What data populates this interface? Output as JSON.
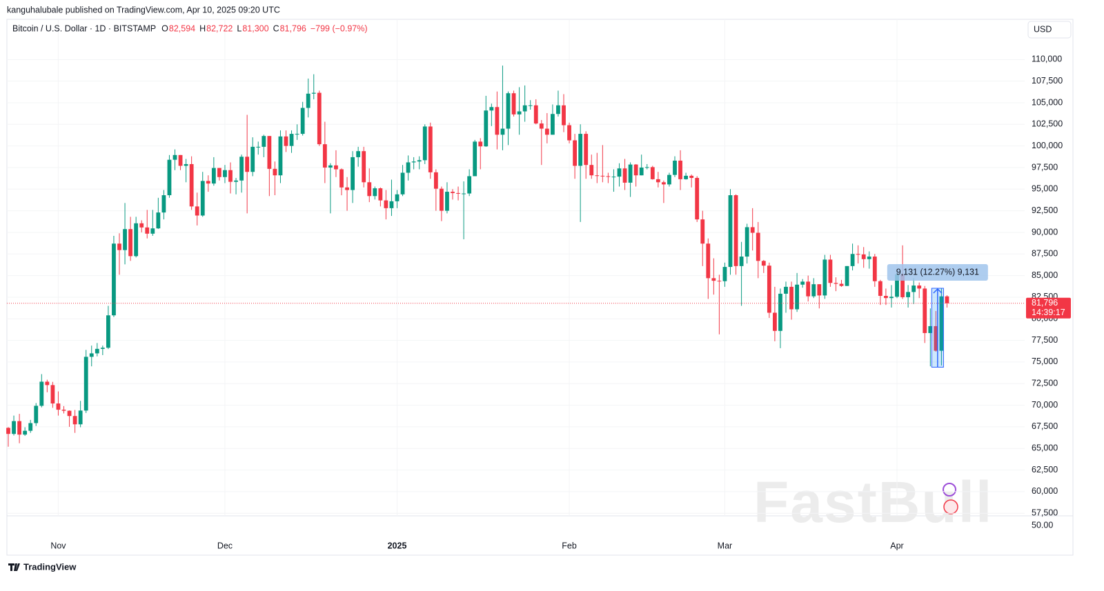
{
  "header": {
    "publisher": "kanguhalubale published on TradingView.com, Apr 10, 2025 09:20 UTC"
  },
  "chart_data": {
    "type": "candlestick",
    "title": "Bitcoin / U.S. Dollar · 1D · BITSTAMP",
    "legend": [
      {
        "key": "O",
        "value": "82,594"
      },
      {
        "key": "H",
        "value": "82,722"
      },
      {
        "key": "L",
        "value": "81,300"
      },
      {
        "key": "C",
        "value": "81,796"
      }
    ],
    "change": "−799 (−0.97%)",
    "currency": "USD",
    "categories": [
      null,
      null,
      null,
      null,
      null,
      null,
      null,
      null,
      null,
      "Nov",
      null,
      null,
      null,
      null,
      null,
      null,
      null,
      null,
      null,
      null,
      null,
      null,
      null,
      null,
      null,
      null,
      null,
      null,
      null,
      null,
      null,
      null,
      null,
      null,
      null,
      null,
      null,
      null,
      null,
      "Dec",
      null,
      null,
      null,
      null,
      null,
      null,
      null,
      null,
      null,
      null,
      null,
      null,
      null,
      null,
      null,
      null,
      null,
      null,
      null,
      null,
      null,
      null,
      null,
      null,
      null,
      null,
      null,
      null,
      null,
      null,
      "2025",
      null,
      null,
      null,
      null,
      null,
      null,
      null,
      null,
      null,
      null,
      null,
      null,
      null,
      null,
      null,
      null,
      null,
      null,
      null,
      null,
      null,
      null,
      null,
      null,
      null,
      null,
      null,
      null,
      null,
      null,
      "Feb",
      null,
      null,
      null,
      null,
      null,
      null,
      null,
      null,
      null,
      null,
      null,
      null,
      null,
      null,
      null,
      null,
      null,
      null,
      null,
      null,
      null,
      null,
      null,
      null,
      null,
      null,
      null,
      "Mar",
      null,
      null,
      null,
      null,
      null,
      null,
      null,
      null,
      null,
      null,
      null,
      null,
      null,
      null,
      null,
      null,
      null,
      null,
      null,
      null,
      null,
      null,
      null,
      null,
      null,
      null,
      null,
      null,
      null,
      null,
      "Apr",
      null,
      null,
      null,
      null,
      null,
      null,
      null,
      null,
      null
    ],
    "open": [
      67380,
      66680,
      68160,
      66600,
      67040,
      67930,
      69930,
      72720,
      72330,
      70200,
      69480,
      69360,
      68750,
      67790,
      69380,
      75600,
      76000,
      76520,
      76650,
      80400,
      88700,
      87950,
      90380,
      87250,
      91050,
      90570,
      89850,
      90460,
      92300,
      94300,
      98400,
      98950,
      97700,
      97900,
      93000,
      91950,
      95950,
      95650,
      97450,
      96400,
      97200,
      95850,
      96000,
      98750,
      97000,
      99900,
      99900,
      101150,
      97350,
      96600,
      101100,
      100000,
      101400,
      101400,
      104400,
      106050,
      106150,
      100200,
      97500,
      97750,
      97300,
      95200,
      94900,
      98700,
      99400,
      95800,
      94200,
      95100,
      93700,
      92800,
      93600,
      94400,
      96900,
      98100,
      98200,
      98350,
      102250,
      96950,
      95050,
      92500,
      94700,
      94550,
      94500,
      94500,
      96500,
      100500,
      99950,
      104100,
      104500,
      101300,
      102000,
      106100,
      103650,
      104000,
      104700,
      104700,
      102600,
      102000,
      101300,
      103700,
      104700,
      102400,
      100650,
      97700,
      101400,
      97800,
      96600,
      96550,
      96500,
      96450,
      96450,
      97400,
      95750,
      97850,
      96600,
      97500,
      97550,
      96150,
      95800,
      95550,
      96650,
      98300,
      96150,
      96550,
      96300,
      91500,
      88700,
      84700,
      84400,
      84350,
      86000,
      94300,
      86100,
      87200,
      90600,
      89950,
      86700,
      86150,
      80700,
      78600,
      82900,
      83700,
      81100,
      83950,
      84300,
      82600,
      84000,
      82700,
      86850,
      84150,
      84050,
      83800,
      86100,
      87500,
      87450,
      86900,
      87200,
      84350,
      82650,
      82400,
      82550,
      85150,
      82500,
      83100,
      83850,
      83500,
      78350,
      79150,
      76300,
      82594
    ],
    "high": [
      67460,
      68800,
      69000,
      67450,
      68300,
      70250,
      73600,
      72950,
      72700,
      71600,
      69900,
      69400,
      69450,
      70500,
      76400,
      76900,
      77200,
      76900,
      81500,
      89600,
      89900,
      93400,
      91800,
      91800,
      91400,
      92600,
      92600,
      94000,
      94900,
      98950,
      99600,
      98950,
      98500,
      98800,
      94600,
      97000,
      96600,
      98700,
      97450,
      97800,
      98100,
      96300,
      99000,
      103600,
      101000,
      100500,
      101300,
      101150,
      98200,
      101800,
      101800,
      101800,
      102500,
      105100,
      107800,
      108300,
      106400,
      102800,
      98000,
      99500,
      97400,
      96400,
      99400,
      99900,
      99900,
      97400,
      95300,
      95200,
      94900,
      96100,
      94900,
      97800,
      98900,
      98700,
      98800,
      102500,
      102700,
      97300,
      95300,
      95800,
      95000,
      95300,
      95900,
      97300,
      100700,
      100900,
      105800,
      104900,
      106300,
      109300,
      106300,
      106400,
      106800,
      107000,
      105300,
      105400,
      103000,
      103800,
      104800,
      106400,
      106000,
      102700,
      101400,
      102500,
      101700,
      99000,
      99200,
      100100,
      96900,
      97300,
      98000,
      98500,
      98100,
      97900,
      99000,
      97900,
      97700,
      97000,
      96000,
      96900,
      98800,
      99500,
      96900,
      96700,
      96500,
      92500,
      89300,
      87000,
      85100,
      86500,
      95000,
      94400,
      88900,
      91000,
      92800,
      91200,
      86800,
      86500,
      83700,
      83500,
      84300,
      84300,
      85300,
      84600,
      85000,
      84700,
      84000,
      87400,
      87400,
      84800,
      84500,
      86100,
      88700,
      88500,
      88300,
      87800,
      87500,
      84500,
      83500,
      83900,
      85500,
      88500,
      83900,
      84700,
      84200,
      83800,
      81200,
      80900,
      83500,
      82722
    ],
    "low": [
      65200,
      66500,
      65600,
      66450,
      66800,
      67600,
      69750,
      71500,
      69700,
      68800,
      69050,
      67500,
      66800,
      67450,
      69100,
      74500,
      75650,
      75800,
      76500,
      80200,
      85100,
      86300,
      86700,
      87100,
      90000,
      89300,
      89600,
      90400,
      91500,
      94000,
      97200,
      97200,
      95800,
      92600,
      90800,
      91800,
      94700,
      95400,
      96000,
      95700,
      94500,
      94400,
      94600,
      92200,
      96500,
      99000,
      98700,
      94200,
      94300,
      95700,
      99300,
      99200,
      100700,
      101200,
      103300,
      105400,
      100000,
      95700,
      92200,
      96400,
      94300,
      92500,
      93400,
      97600,
      95200,
      93500,
      93800,
      93000,
      91500,
      91900,
      92800,
      94200,
      96000,
      97300,
      97300,
      97900,
      96200,
      92500,
      91300,
      92200,
      93800,
      93700,
      89200,
      94200,
      96500,
      97300,
      99900,
      102300,
      99600,
      99500,
      100100,
      103400,
      101300,
      102800,
      104200,
      102500,
      97800,
      100300,
      101300,
      103400,
      101600,
      100300,
      96200,
      91200,
      96200,
      96200,
      95700,
      95800,
      95700,
      94700,
      95300,
      94900,
      94100,
      95300,
      96600,
      97300,
      96100,
      95200,
      93400,
      95300,
      96400,
      94900,
      96100,
      95200,
      91200,
      86100,
      82300,
      82800,
      78200,
      83700,
      85100,
      85100,
      81500,
      86400,
      87900,
      84700,
      85300,
      80100,
      77400,
      76600,
      80700,
      79900,
      80800,
      83600,
      82000,
      82400,
      81200,
      82300,
      83700,
      83200,
      83700,
      83800,
      85600,
      86400,
      85900,
      85800,
      83700,
      81600,
      81600,
      81300,
      82400,
      82300,
      81300,
      81700,
      82400,
      77200,
      74500,
      76200,
      74600,
      81300
    ],
    "close": [
      66680,
      68160,
      66600,
      67040,
      67930,
      69930,
      72720,
      72330,
      70200,
      69480,
      69360,
      68750,
      67790,
      69380,
      75600,
      76000,
      76520,
      76650,
      80400,
      88700,
      87950,
      90380,
      87250,
      91050,
      90570,
      89850,
      90460,
      92300,
      94300,
      98400,
      98950,
      97700,
      97900,
      93000,
      91950,
      95950,
      95650,
      97450,
      96400,
      97200,
      95850,
      96000,
      98750,
      97000,
      99900,
      99900,
      101150,
      97350,
      96600,
      101100,
      100000,
      101400,
      101400,
      104400,
      106050,
      106150,
      100200,
      97500,
      97750,
      97300,
      95200,
      94900,
      98700,
      99400,
      95800,
      94200,
      95100,
      93700,
      92800,
      93600,
      94400,
      96900,
      98100,
      98200,
      98350,
      102250,
      96950,
      95050,
      92500,
      94700,
      94550,
      94500,
      94500,
      96500,
      100500,
      99950,
      104100,
      104500,
      101300,
      102000,
      106100,
      103650,
      104000,
      104700,
      104700,
      102600,
      102000,
      101300,
      103700,
      104700,
      102400,
      100650,
      97700,
      101400,
      97800,
      96600,
      96550,
      96500,
      96450,
      96450,
      97400,
      95750,
      97850,
      96600,
      97500,
      97550,
      96150,
      95800,
      95550,
      96650,
      98300,
      96150,
      96550,
      96300,
      91500,
      88700,
      84700,
      84400,
      84350,
      86000,
      94300,
      86100,
      87200,
      90600,
      89950,
      86700,
      86150,
      80700,
      78600,
      82900,
      83700,
      81100,
      83950,
      84300,
      82600,
      84000,
      82700,
      86850,
      84150,
      84050,
      83800,
      86100,
      87500,
      87450,
      86900,
      87200,
      84350,
      82650,
      82400,
      82550,
      85150,
      82500,
      83100,
      83850,
      83500,
      78350,
      79150,
      76300,
      82594,
      81796
    ],
    "up_color": "#089981",
    "down_color": "#f23645",
    "ylim": [
      57200,
      112100
    ],
    "yticks": [
      {
        "value": 57500,
        "label": "57,500"
      },
      {
        "value": 60000,
        "label": "60,000"
      },
      {
        "value": 62500,
        "label": "62,500"
      },
      {
        "value": 65000,
        "label": "65,000"
      },
      {
        "value": 67500,
        "label": "67,500"
      },
      {
        "value": 70000,
        "label": "70,000"
      },
      {
        "value": 72500,
        "label": "72,500"
      },
      {
        "value": 75000,
        "label": "75,000"
      },
      {
        "value": 77500,
        "label": "77,500"
      },
      {
        "value": 80000,
        "label": "80,000"
      },
      {
        "value": 82500,
        "label": "82,500"
      },
      {
        "value": 85000,
        "label": "85,000"
      },
      {
        "value": 87500,
        "label": "87,500"
      },
      {
        "value": 90000,
        "label": "90,000"
      },
      {
        "value": 92500,
        "label": "92,500"
      },
      {
        "value": 95000,
        "label": "95,000"
      },
      {
        "value": 97500,
        "label": "97,500"
      },
      {
        "value": 100000,
        "label": "100,000"
      },
      {
        "value": 102500,
        "label": "102,500"
      },
      {
        "value": 105000,
        "label": "105,000"
      },
      {
        "value": 107500,
        "label": "107,500"
      },
      {
        "value": 110000,
        "label": "110,000"
      }
    ],
    "grid": true,
    "last_price": {
      "value": 81796,
      "label": "81,796",
      "countdown": "14:39:17"
    },
    "measure": {
      "from": 74400,
      "to": 83531,
      "start": 166,
      "end": 168,
      "label": "9,131 (12.27%) 9,131"
    },
    "scale_note": "50.00"
  },
  "watermark": "FastBull",
  "footer": {
    "brand": "TradingView"
  }
}
